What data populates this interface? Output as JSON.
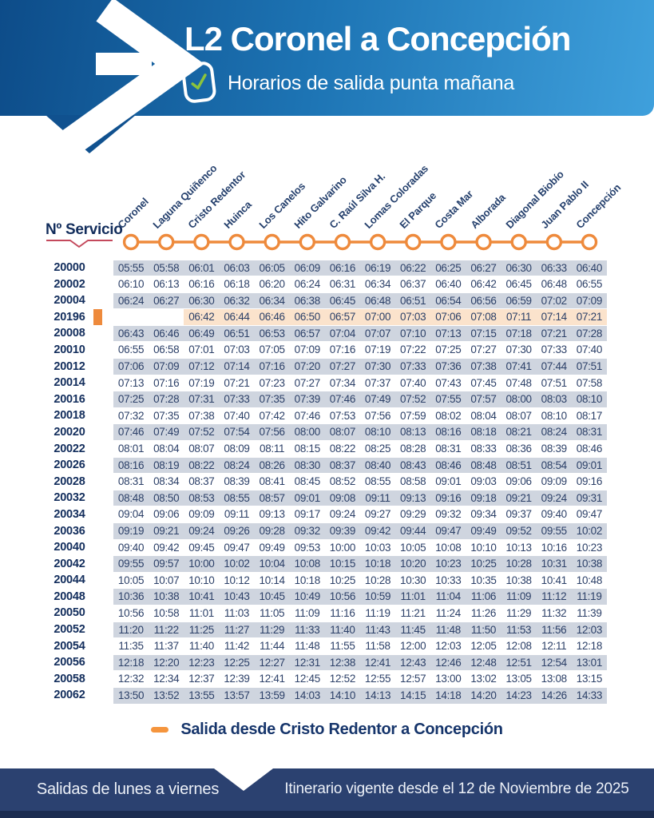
{
  "colors": {
    "blue-dark": "#0d4c89",
    "blue-light": "#3fa0dc",
    "navy": "#2b4170",
    "footer-strip": "#1b2c50",
    "text-navy": "#2c4068",
    "service-navy": "#122d5c",
    "row-gray": "#cfd5df",
    "row-peach": "#fbe3cc",
    "orange": "#ee8a3c",
    "red-line": "#c4495c",
    "green-check": "#8cc43c"
  },
  "header": {
    "title": "L2 Coronel a Concepción",
    "subtitle": "Horarios de salida punta mañana"
  },
  "table": {
    "service_label": "Nº Servicio",
    "stations": [
      "Coronel",
      "Laguna Quiñenco",
      "Cristo Redentor",
      "Huinca",
      "Los Canelos",
      "Hito Galvarino",
      "C. Raúl Silva H.",
      "Lomas Coloradas",
      "El Parque",
      "Costa Mar",
      "Alborada",
      "Diagonal Biobío",
      "Juan Pablo II",
      "Concepción"
    ],
    "rows": [
      {
        "service": "20000",
        "style": "gray",
        "times": [
          "05:55",
          "05:58",
          "06:01",
          "06:03",
          "06:05",
          "06:09",
          "06:16",
          "06:19",
          "06:22",
          "06:25",
          "06:27",
          "06:30",
          "06:33",
          "06:40"
        ]
      },
      {
        "service": "20002",
        "style": "white",
        "times": [
          "06:10",
          "06:13",
          "06:16",
          "06:18",
          "06:20",
          "06:24",
          "06:31",
          "06:34",
          "06:37",
          "06:40",
          "06:42",
          "06:45",
          "06:48",
          "06:55"
        ]
      },
      {
        "service": "20004",
        "style": "gray",
        "times": [
          "06:24",
          "06:27",
          "06:30",
          "06:32",
          "06:34",
          "06:38",
          "06:45",
          "06:48",
          "06:51",
          "06:54",
          "06:56",
          "06:59",
          "07:02",
          "07:09"
        ]
      },
      {
        "service": "20196",
        "style": "highlight",
        "times": [
          "",
          "",
          "06:42",
          "06:44",
          "06:46",
          "06:50",
          "06:57",
          "07:00",
          "07:03",
          "07:06",
          "07:08",
          "07:11",
          "07:14",
          "07:21"
        ]
      },
      {
        "service": "20008",
        "style": "gray",
        "times": [
          "06:43",
          "06:46",
          "06:49",
          "06:51",
          "06:53",
          "06:57",
          "07:04",
          "07:07",
          "07:10",
          "07:13",
          "07:15",
          "07:18",
          "07:21",
          "07:28"
        ]
      },
      {
        "service": "20010",
        "style": "white",
        "times": [
          "06:55",
          "06:58",
          "07:01",
          "07:03",
          "07:05",
          "07:09",
          "07:16",
          "07:19",
          "07:22",
          "07:25",
          "07:27",
          "07:30",
          "07:33",
          "07:40"
        ]
      },
      {
        "service": "20012",
        "style": "gray",
        "times": [
          "07:06",
          "07:09",
          "07:12",
          "07:14",
          "07:16",
          "07:20",
          "07:27",
          "07:30",
          "07:33",
          "07:36",
          "07:38",
          "07:41",
          "07:44",
          "07:51"
        ]
      },
      {
        "service": "20014",
        "style": "white",
        "times": [
          "07:13",
          "07:16",
          "07:19",
          "07:21",
          "07:23",
          "07:27",
          "07:34",
          "07:37",
          "07:40",
          "07:43",
          "07:45",
          "07:48",
          "07:51",
          "07:58"
        ]
      },
      {
        "service": "20016",
        "style": "gray",
        "times": [
          "07:25",
          "07:28",
          "07:31",
          "07:33",
          "07:35",
          "07:39",
          "07:46",
          "07:49",
          "07:52",
          "07:55",
          "07:57",
          "08:00",
          "08:03",
          "08:10"
        ]
      },
      {
        "service": "20018",
        "style": "white",
        "times": [
          "07:32",
          "07:35",
          "07:38",
          "07:40",
          "07:42",
          "07:46",
          "07:53",
          "07:56",
          "07:59",
          "08:02",
          "08:04",
          "08:07",
          "08:10",
          "08:17"
        ]
      },
      {
        "service": "20020",
        "style": "gray",
        "times": [
          "07:46",
          "07:49",
          "07:52",
          "07:54",
          "07:56",
          "08:00",
          "08:07",
          "08:10",
          "08:13",
          "08:16",
          "08:18",
          "08:21",
          "08:24",
          "08:31"
        ]
      },
      {
        "service": "20022",
        "style": "white",
        "times": [
          "08:01",
          "08:04",
          "08:07",
          "08:09",
          "08:11",
          "08:15",
          "08:22",
          "08:25",
          "08:28",
          "08:31",
          "08:33",
          "08:36",
          "08:39",
          "08:46"
        ]
      },
      {
        "service": "20026",
        "style": "gray",
        "times": [
          "08:16",
          "08:19",
          "08:22",
          "08:24",
          "08:26",
          "08:30",
          "08:37",
          "08:40",
          "08:43",
          "08:46",
          "08:48",
          "08:51",
          "08:54",
          "09:01"
        ]
      },
      {
        "service": "20028",
        "style": "white",
        "times": [
          "08:31",
          "08:34",
          "08:37",
          "08:39",
          "08:41",
          "08:45",
          "08:52",
          "08:55",
          "08:58",
          "09:01",
          "09:03",
          "09:06",
          "09:09",
          "09:16"
        ]
      },
      {
        "service": "20032",
        "style": "gray",
        "times": [
          "08:48",
          "08:50",
          "08:53",
          "08:55",
          "08:57",
          "09:01",
          "09:08",
          "09:11",
          "09:13",
          "09:16",
          "09:18",
          "09:21",
          "09:24",
          "09:31"
        ]
      },
      {
        "service": "20034",
        "style": "white",
        "times": [
          "09:04",
          "09:06",
          "09:09",
          "09:11",
          "09:13",
          "09:17",
          "09:24",
          "09:27",
          "09:29",
          "09:32",
          "09:34",
          "09:37",
          "09:40",
          "09:47"
        ]
      },
      {
        "service": "20036",
        "style": "gray",
        "times": [
          "09:19",
          "09:21",
          "09:24",
          "09:26",
          "09:28",
          "09:32",
          "09:39",
          "09:42",
          "09:44",
          "09:47",
          "09:49",
          "09:52",
          "09:55",
          "10:02"
        ]
      },
      {
        "service": "20040",
        "style": "white",
        "times": [
          "09:40",
          "09:42",
          "09:45",
          "09:47",
          "09:49",
          "09:53",
          "10:00",
          "10:03",
          "10:05",
          "10:08",
          "10:10",
          "10:13",
          "10:16",
          "10:23"
        ]
      },
      {
        "service": "20042",
        "style": "gray",
        "times": [
          "09:55",
          "09:57",
          "10:00",
          "10:02",
          "10:04",
          "10:08",
          "10:15",
          "10:18",
          "10:20",
          "10:23",
          "10:25",
          "10:28",
          "10:31",
          "10:38"
        ]
      },
      {
        "service": "20044",
        "style": "white",
        "times": [
          "10:05",
          "10:07",
          "10:10",
          "10:12",
          "10:14",
          "10:18",
          "10:25",
          "10:28",
          "10:30",
          "10:33",
          "10:35",
          "10:38",
          "10:41",
          "10:48"
        ]
      },
      {
        "service": "20048",
        "style": "gray",
        "times": [
          "10:36",
          "10:38",
          "10:41",
          "10:43",
          "10:45",
          "10:49",
          "10:56",
          "10:59",
          "11:01",
          "11:04",
          "11:06",
          "11:09",
          "11:12",
          "11:19"
        ]
      },
      {
        "service": "20050",
        "style": "white",
        "times": [
          "10:56",
          "10:58",
          "11:01",
          "11:03",
          "11:05",
          "11:09",
          "11:16",
          "11:19",
          "11:21",
          "11:24",
          "11:26",
          "11:29",
          "11:32",
          "11:39"
        ]
      },
      {
        "service": "20052",
        "style": "gray",
        "times": [
          "11:20",
          "11:22",
          "11:25",
          "11:27",
          "11:29",
          "11:33",
          "11:40",
          "11:43",
          "11:45",
          "11:48",
          "11:50",
          "11:53",
          "11:56",
          "12:03"
        ]
      },
      {
        "service": "20054",
        "style": "white",
        "times": [
          "11:35",
          "11:37",
          "11:40",
          "11:42",
          "11:44",
          "11:48",
          "11:55",
          "11:58",
          "12:00",
          "12:03",
          "12:05",
          "12:08",
          "12:11",
          "12:18"
        ]
      },
      {
        "service": "20056",
        "style": "gray",
        "times": [
          "12:18",
          "12:20",
          "12:23",
          "12:25",
          "12:27",
          "12:31",
          "12:38",
          "12:41",
          "12:43",
          "12:46",
          "12:48",
          "12:51",
          "12:54",
          "13:01"
        ]
      },
      {
        "service": "20058",
        "style": "white",
        "times": [
          "12:32",
          "12:34",
          "12:37",
          "12:39",
          "12:41",
          "12:45",
          "12:52",
          "12:55",
          "12:57",
          "13:00",
          "13:02",
          "13:05",
          "13:08",
          "13:15"
        ]
      },
      {
        "service": "20062",
        "style": "gray",
        "times": [
          "13:50",
          "13:52",
          "13:55",
          "13:57",
          "13:59",
          "14:03",
          "14:10",
          "14:13",
          "14:15",
          "14:18",
          "14:20",
          "14:23",
          "14:26",
          "14:33"
        ]
      }
    ]
  },
  "legend": {
    "text": "Salida desde Cristo Redentor a Concepción"
  },
  "footer": {
    "left": "Salidas de lunes a viernes",
    "right": "Itinerario vigente desde el 12 de Noviembre de 2025"
  }
}
